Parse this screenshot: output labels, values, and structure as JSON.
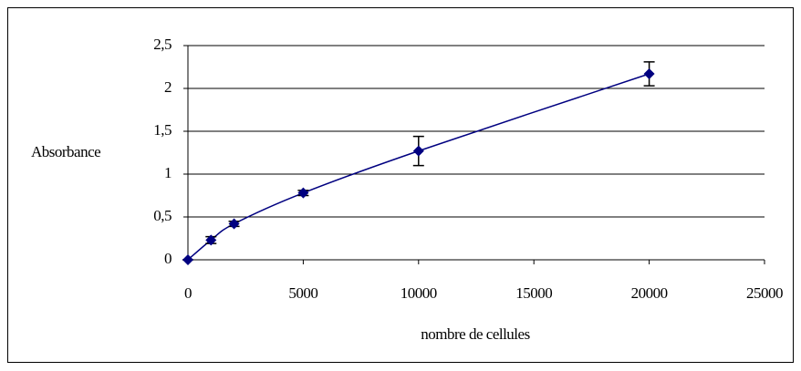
{
  "chart_data": {
    "type": "scatter",
    "x_label": "nombre de cellules",
    "y_label": "Absorbance",
    "series": [
      {
        "color": "#000080",
        "x": [
          0,
          1000,
          2000,
          5000,
          10000,
          20000
        ],
        "values": [
          0,
          0.23,
          0.42,
          0.78,
          1.27,
          2.17
        ],
        "errors": [
          0,
          0.04,
          0.03,
          0.03,
          0.17,
          0.14
        ]
      }
    ],
    "xlim": [
      0,
      25000
    ],
    "xticks": [
      0,
      5000,
      10000,
      15000,
      20000,
      25000
    ],
    "ylim": [
      0,
      2.5
    ],
    "yticks": [
      0,
      {
        "value": 0.5,
        "label": "0,5"
      },
      1,
      {
        "value": 1.5,
        "label": "1,5"
      },
      2,
      {
        "value": 2.5,
        "label": "2,5"
      }
    ],
    "grid": true,
    "smooth": true
  }
}
